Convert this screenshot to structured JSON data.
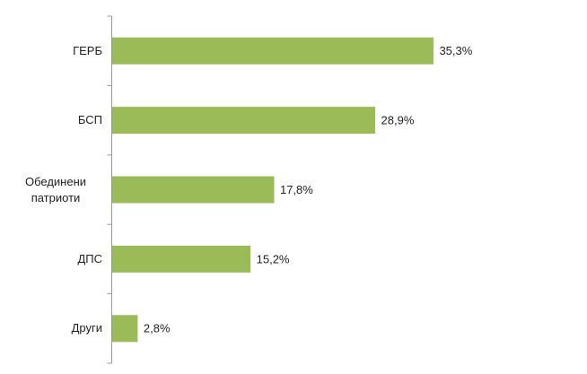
{
  "chart_data": {
    "type": "bar",
    "orientation": "horizontal",
    "categories": [
      "ГЕРБ",
      "БСП",
      "Обединени патриоти",
      "ДПС",
      "Други"
    ],
    "values": [
      35.3,
      28.9,
      17.8,
      15.2,
      2.8
    ],
    "value_labels": [
      "35,3%",
      "28,9%",
      "17,8%",
      "15,2%",
      "2,8%"
    ],
    "color": "#9bbb59"
  }
}
